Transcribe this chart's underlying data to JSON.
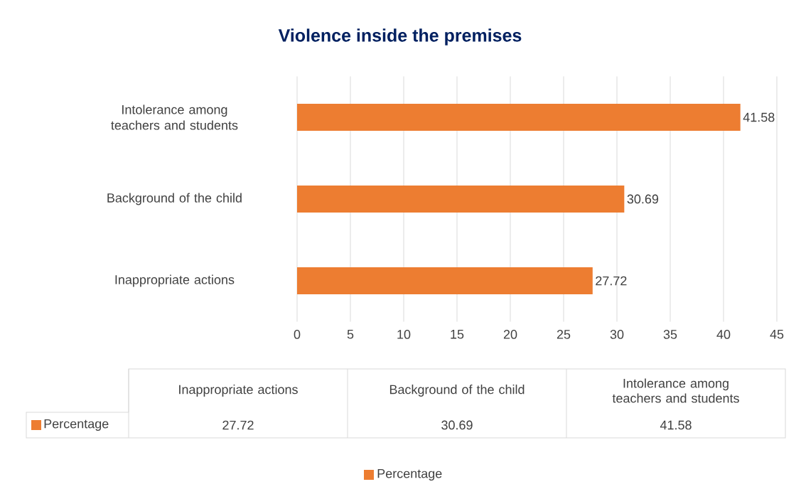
{
  "chart_data": {
    "type": "bar",
    "orientation": "horizontal",
    "title": "Violence inside the premises",
    "categories": [
      "Intolerance among teachers and students",
      "Background of the child",
      "Inappropriate actions"
    ],
    "series": [
      {
        "name": "Percentage",
        "color": "#ed7d31",
        "values": [
          41.58,
          30.69,
          27.72
        ],
        "value_labels": [
          "41.58",
          "30.69",
          "27.72"
        ]
      }
    ],
    "xlim": [
      0,
      45
    ],
    "xticks": [
      0,
      5,
      10,
      15,
      20,
      25,
      30,
      35,
      40,
      45
    ],
    "grid": "x",
    "legend": "bottom"
  }
}
